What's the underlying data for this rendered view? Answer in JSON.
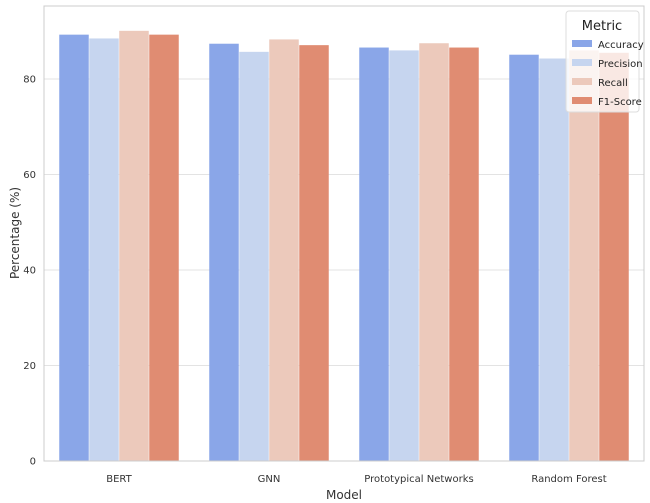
{
  "chart_data": {
    "type": "bar",
    "title": "",
    "xlabel": "Model",
    "ylabel": "Percentage (%)",
    "ylim": [
      0,
      95.3
    ],
    "yticks": [
      0,
      20,
      40,
      60,
      80
    ],
    "grid": "y",
    "categories": [
      "BERT",
      "GNN",
      "Prototypical Networks",
      "Random Forest"
    ],
    "series": [
      {
        "name": "Accuracy",
        "color": "#8aa6e8",
        "values": [
          89.3,
          87.4,
          86.6,
          85.1
        ]
      },
      {
        "name": "Precision",
        "color": "#c6d5ef",
        "values": [
          88.5,
          85.7,
          86.0,
          84.3
        ]
      },
      {
        "name": "Recall",
        "color": "#ecc9bb",
        "values": [
          90.1,
          88.3,
          87.5,
          86.0
        ]
      },
      {
        "name": "F1-Score",
        "color": "#e08c72",
        "values": [
          89.3,
          87.1,
          86.6,
          85.5
        ]
      }
    ],
    "legend": {
      "title": "Metric",
      "placement": "top-right"
    }
  }
}
